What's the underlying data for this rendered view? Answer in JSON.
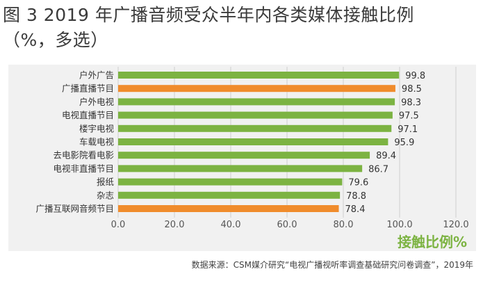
{
  "title_line1": "图 3 2019 年广播音频受众半年内各类媒体接触比例",
  "title_line2": "（%，多选）",
  "source": "数据来源：CSM媒介研究“电视广播视听率调查基础研究问卷调查”，2019年",
  "chart_data": {
    "type": "bar",
    "orientation": "horizontal",
    "categories": [
      "户外广告",
      "广播直播节目",
      "户外电视",
      "电视直播节目",
      "楼宇电视",
      "车载电视",
      "去电影院看电影",
      "电视非直播节目",
      "报纸",
      "杂志",
      "广播互联网音频节目"
    ],
    "values": [
      99.8,
      98.5,
      98.3,
      97.5,
      97.1,
      95.9,
      89.4,
      86.7,
      79.6,
      78.8,
      78.4
    ],
    "value_labels": [
      "99.8",
      "98.5",
      "98.3",
      "97.5",
      "97.1",
      "95.9",
      "89.4",
      "86.7",
      "79.6",
      "78.8",
      "78.4"
    ],
    "highlight": [
      false,
      true,
      false,
      false,
      false,
      false,
      false,
      false,
      false,
      false,
      true
    ],
    "xlim": [
      0,
      120
    ],
    "xticks": [
      "0.0",
      "20.0",
      "40.0",
      "60.0",
      "80.0",
      "100.0",
      "120.0"
    ],
    "xlabel": "接触比例%",
    "grid": true,
    "colors": {
      "bar": "#7cb342",
      "highlight": "#f08c2c",
      "grid": "#d0d0d0",
      "xlabel": "#7cb342"
    }
  }
}
